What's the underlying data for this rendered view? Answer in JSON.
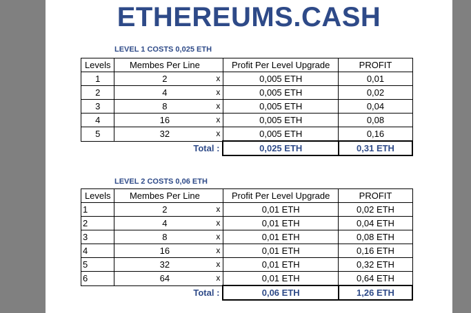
{
  "title": "ETHEREUMS.CASH",
  "tables": [
    {
      "caption": "LEVEL 1 COSTS 0,025 ETH",
      "headers": [
        "Levels",
        "Membes Per Line",
        "",
        "Profit Per Level Upgrade",
        "PROFIT"
      ],
      "rows": [
        {
          "level": "1",
          "members": "2",
          "x": "x",
          "profit_per_level": "0,005 ETH",
          "profit": "0,01"
        },
        {
          "level": "2",
          "members": "4",
          "x": "x",
          "profit_per_level": "0,005 ETH",
          "profit": "0,02"
        },
        {
          "level": "3",
          "members": "8",
          "x": "x",
          "profit_per_level": "0,005 ETH",
          "profit": "0,04"
        },
        {
          "level": "4",
          "members": "16",
          "x": "x",
          "profit_per_level": "0,005 ETH",
          "profit": "0,08"
        },
        {
          "level": "5",
          "members": "32",
          "x": "x",
          "profit_per_level": "0,005 ETH",
          "profit": "0,16"
        }
      ],
      "total_label": "Total  :",
      "total_cost": "0,025 ETH",
      "total_profit": "0,31 ETH"
    },
    {
      "caption": "LEVEL 2 COSTS 0,06 ETH",
      "headers": [
        "Levels",
        "Membes Per Line",
        "",
        "Profit Per Level Upgrade",
        "PROFIT"
      ],
      "rows": [
        {
          "level": "1",
          "members": "2",
          "x": "x",
          "profit_per_level": "0,01 ETH",
          "profit": "0,02 ETH"
        },
        {
          "level": "2",
          "members": "4",
          "x": "x",
          "profit_per_level": "0,01 ETH",
          "profit": "0,04 ETH"
        },
        {
          "level": "3",
          "members": "8",
          "x": "x",
          "profit_per_level": "0,01 ETH",
          "profit": "0,08 ETH"
        },
        {
          "level": "4",
          "members": "16",
          "x": "x",
          "profit_per_level": "0,01 ETH",
          "profit": "0,16 ETH"
        },
        {
          "level": "5",
          "members": "32",
          "x": "x",
          "profit_per_level": "0,01 ETH",
          "profit": "0,32 ETH"
        },
        {
          "level": "6",
          "members": "64",
          "x": "x",
          "profit_per_level": "0,01 ETH",
          "profit": "0,64 ETH"
        }
      ],
      "total_label": "Total  :",
      "total_cost": "0,06 ETH",
      "total_profit": "1,26 ETH"
    }
  ]
}
